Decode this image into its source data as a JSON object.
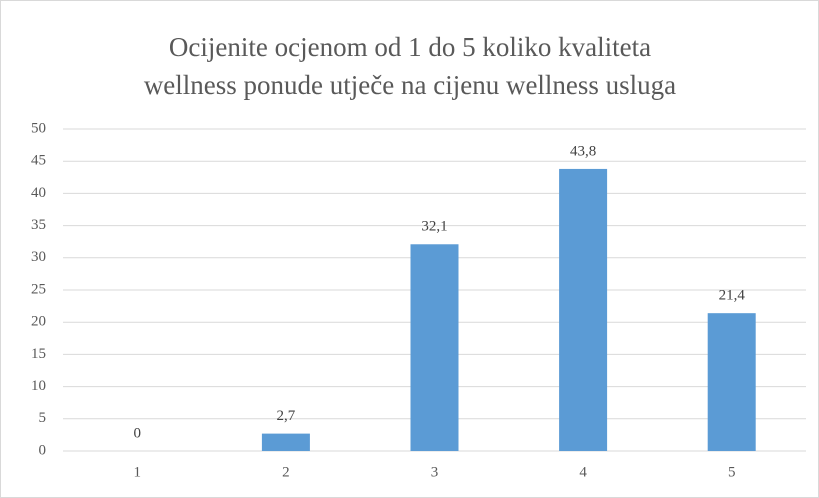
{
  "chart_data": {
    "type": "bar",
    "title": [
      "Ocijenite ocjenom od 1 do 5 koliko kvaliteta",
      "wellness ponude utječe na cijenu wellness usluga"
    ],
    "categories": [
      "1",
      "2",
      "3",
      "4",
      "5"
    ],
    "values": [
      0,
      2.7,
      32.1,
      43.8,
      21.4
    ],
    "value_labels": [
      "0",
      "2,7",
      "32,1",
      "43,8",
      "21,4"
    ],
    "color": "#5b9bd5",
    "ylim": [
      0,
      50
    ],
    "yticks": [
      0,
      5,
      10,
      15,
      20,
      25,
      30,
      35,
      40,
      45,
      50
    ],
    "grid": true
  }
}
